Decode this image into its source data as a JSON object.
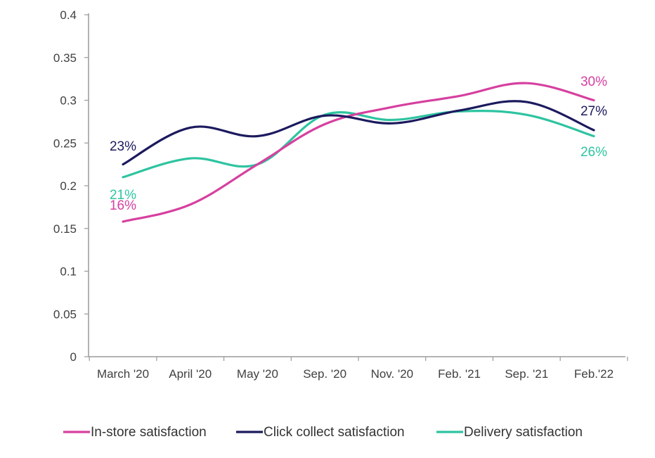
{
  "chart_data": {
    "type": "line",
    "title": "",
    "xlabel": "",
    "ylabel": "",
    "categories": [
      "March '20",
      "April '20",
      "May '20",
      "Sep. '20",
      "Nov. '20",
      "Feb. '21",
      "Sep. '21",
      "Feb.'22"
    ],
    "ylim": [
      0,
      0.4
    ],
    "yticks": [
      "0",
      "0.05",
      "0.1",
      "0.15",
      "0.2",
      "0.25",
      "0.3",
      "0.35",
      "0.4"
    ],
    "grid": false,
    "legend_position": "bottom",
    "series": [
      {
        "name": "In-store satisfaction",
        "color": "#d6409f",
        "values": [
          0.158,
          0.178,
          0.225,
          0.272,
          0.292,
          0.305,
          0.32,
          0.3
        ],
        "start_label": "16%",
        "end_label": "30%"
      },
      {
        "name": "Click collect satisfaction",
        "color": "#1c1a5e",
        "values": [
          0.225,
          0.268,
          0.258,
          0.282,
          0.273,
          0.288,
          0.298,
          0.265
        ],
        "start_label": "23%",
        "end_label": "27%"
      },
      {
        "name": "Delivery satisfaction",
        "color": "#2ec4a0",
        "values": [
          0.21,
          0.232,
          0.225,
          0.283,
          0.277,
          0.287,
          0.283,
          0.258
        ],
        "start_label": "21%",
        "end_label": "26%"
      }
    ]
  }
}
